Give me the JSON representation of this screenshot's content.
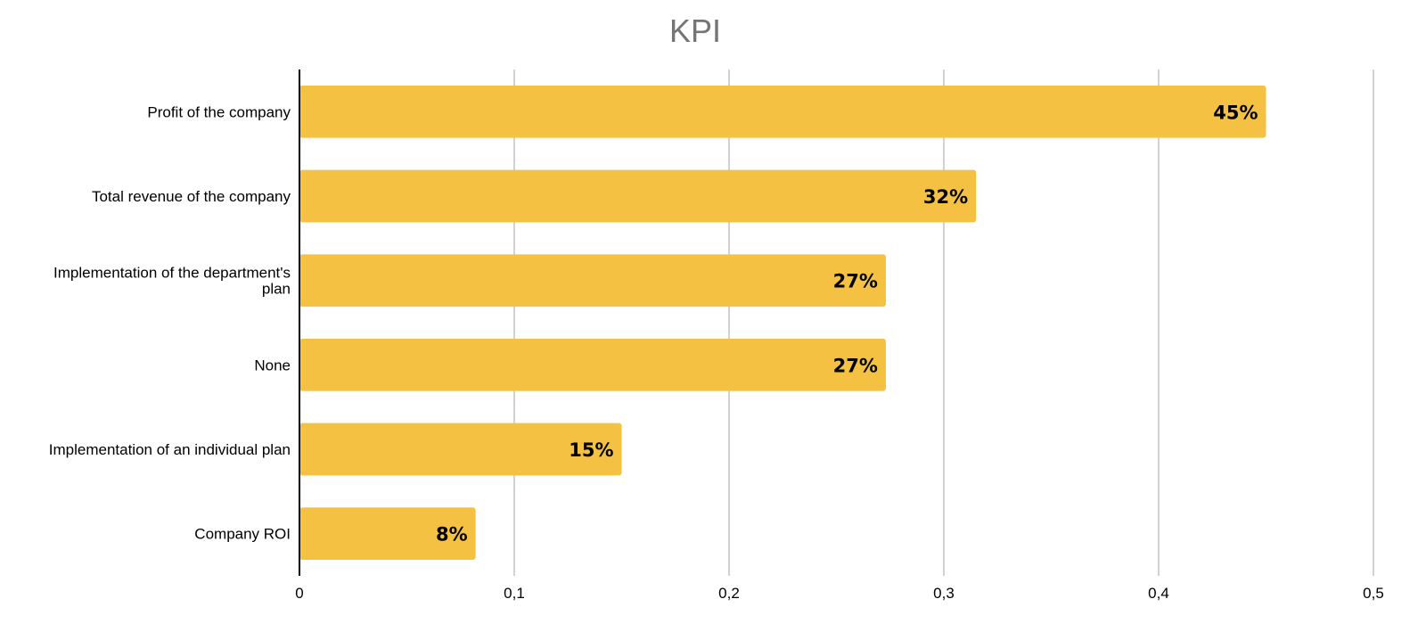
{
  "chart_data": {
    "type": "bar",
    "orientation": "horizontal",
    "title": "KPI",
    "xlabel": "",
    "ylabel": "",
    "categories": [
      "Profit of the company",
      "Total revenue of the company",
      "Implementation of the department's plan",
      "None",
      "Implementation of an individual plan",
      "Company ROI"
    ],
    "values": [
      0.45,
      0.315,
      0.273,
      0.273,
      0.15,
      0.082
    ],
    "data_labels": [
      "45%",
      "32%",
      "27%",
      "27%",
      "15%",
      "8%"
    ],
    "xlim": [
      0,
      0.5
    ],
    "x_ticks": [
      "0",
      "0,1",
      "0,2",
      "0,3",
      "0,4",
      "0,5"
    ],
    "grid": true,
    "legend": "none",
    "colors": {
      "bar": "#F4C142",
      "grid": "#C4C4C4",
      "axis": "#000000",
      "title": "#757575"
    }
  }
}
